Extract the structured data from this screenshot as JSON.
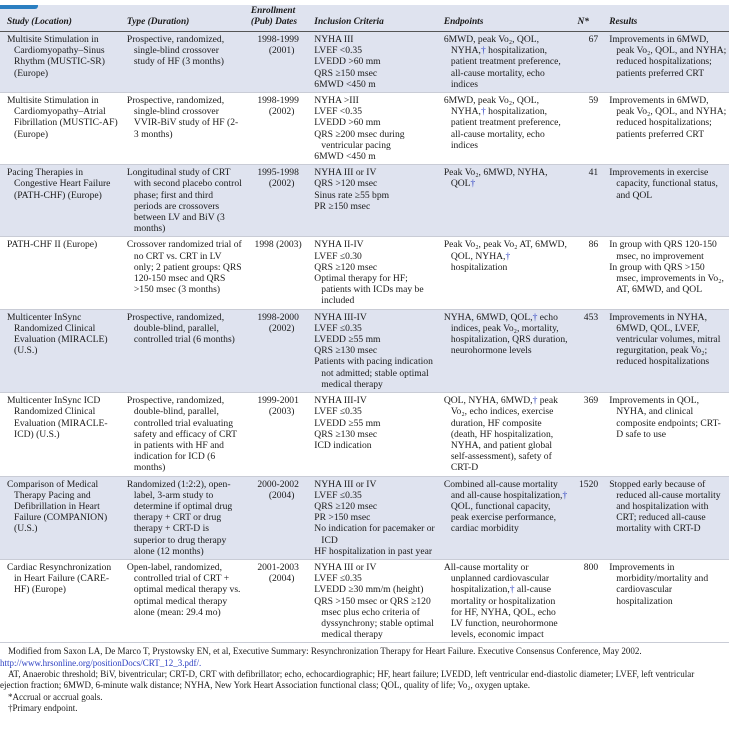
{
  "headers": [
    "Study (Location)",
    "Type (Duration)",
    "Enrollment (Pub) Dates",
    "Inclusion Criteria",
    "Endpoints",
    "N*",
    "Results"
  ],
  "rows": [
    {
      "study": "Multisite Stimulation in Cardiomyopathy–Sinus Rhythm (MUSTIC-SR) (Europe)",
      "type": "Prospective, randomized, single-blind crossover study of HF (3 months)",
      "dates": "1998-1999 (2001)",
      "criteria": [
        "NYHA III",
        "LVEF <0.35",
        "LVEDD >60 mm",
        "QRS ≥150 msec",
        "6MWD <450 m"
      ],
      "endpoints": "6MWD, peak Vo₂, QOL, NYHA,† hospitalization, patient treatment preference, all-cause mortality, echo indices",
      "n": "67",
      "results": [
        "Improvements in 6MWD, peak Vo₂, QOL, and NYHA; reduced hospitalizations; patients preferred CRT"
      ]
    },
    {
      "study": "Multisite Stimulation in Cardiomyopathy–Atrial Fibrillation (MUSTIC-AF) (Europe)",
      "type": "Prospective, randomized, single-blind crossover VVIR-BiV study of HF (2-3 months)",
      "dates": "1998-1999 (2002)",
      "criteria": [
        "NYHA >III",
        "LVEF <0.35",
        "LVEDD >60 mm",
        "QRS ≥200 msec during ventricular pacing",
        "6MWD <450 m"
      ],
      "endpoints": "6MWD, peak Vo₂, QOL, NYHA,† hospitalization, patient treatment preference, all-cause mortality, echo indices",
      "n": "59",
      "results": [
        "Improvements in 6MWD, peak Vo₂, QOL, and NYHA; reduced hospitalizations; patients preferred CRT"
      ]
    },
    {
      "study": "Pacing Therapies in Congestive Heart Failure (PATH-CHF) (Europe)",
      "type": "Longitudinal study of CRT with second placebo control phase; first and third periods are crossovers between LV and BiV (3 months)",
      "dates": "1995-1998 (2002)",
      "criteria": [
        "NYHA III or IV",
        "QRS >120 msec",
        "Sinus rate ≥55 bpm",
        "PR ≥150 msec"
      ],
      "endpoints": "Peak Vo₂, 6MWD, NYHA, QOL†",
      "n": "41",
      "results": [
        "Improvements in exercise capacity, functional status, and QOL"
      ]
    },
    {
      "study": "PATH-CHF II (Europe)",
      "type": "Crossover randomized trial of no CRT vs. CRT in LV only; 2 patient groups: QRS 120-150 msec and QRS >150 msec (3 months)",
      "dates": "1998 (2003)",
      "criteria": [
        "NYHA II-IV",
        "LVEF ≤0.30",
        "QRS ≥120 msec",
        "Optimal therapy for HF; patients with ICDs may be included"
      ],
      "endpoints": "Peak Vo₂, peak Vo₂ AT, 6MWD, QOL, NYHA,† hospitalization",
      "n": "86",
      "results": [
        "In group with QRS 120-150 msec, no improvement",
        "In group with QRS >150 msec, improvements in Vo₂, AT, 6MWD, and QOL"
      ]
    },
    {
      "study": "Multicenter InSync Randomized Clinical Evaluation (MIRACLE) (U.S.)",
      "type": "Prospective, randomized, double-blind, parallel, controlled trial (6 months)",
      "dates": "1998-2000 (2002)",
      "criteria": [
        "NYHA III-IV",
        "LVEF ≤0.35",
        "LVEDD ≥55 mm",
        "QRS ≥130 msec",
        "Patients with pacing indication not admitted; stable optimal medical therapy"
      ],
      "endpoints": "NYHA, 6MWD, QOL,† echo indices, peak Vo₂, mortality, hospitalization, QRS duration, neurohormone levels",
      "n": "453",
      "results": [
        "Improvements in NYHA, 6MWD, QOL, LVEF, ventricular volumes, mitral regurgitation, peak Vo₂; reduced hospitalizations"
      ]
    },
    {
      "study": "Multicenter InSync ICD Randomized Clinical Evaluation (MIRACLE-ICD) (U.S.)",
      "type": "Prospective, randomized, double-blind, parallel, controlled trial evaluating safety and efficacy of CRT in patients with HF and indication for ICD (6 months)",
      "dates": "1999-2001 (2003)",
      "criteria": [
        "NYHA III-IV",
        "LVEF ≤0.35",
        "LVEDD ≥55 mm",
        "QRS ≥130 msec",
        "ICD indication"
      ],
      "endpoints": "QOL, NYHA, 6MWD,† peak Vo₂, echo indices, exercise duration, HF composite (death, HF hospitalization, NYHA, and patient global self-assessment), safety of CRT-D",
      "n": "369",
      "results": [
        "Improvements in QOL, NYHA, and clinical composite endpoints; CRT-D safe to use"
      ]
    },
    {
      "study": "Comparison of Medical Therapy Pacing and Defibrillation in Heart Failure (COMPANION) (U.S.)",
      "type": "Randomized (1:2:2), open-label, 3-arm study to determine if optimal drug therapy + CRT or drug therapy + CRT-D is superior to drug therapy alone (12 months)",
      "dates": "2000-2002 (2004)",
      "criteria": [
        "NYHA III or IV",
        "LVEF ≤0.35",
        "QRS ≥120 msec",
        "PR >150 msec",
        "No indication for pacemaker or ICD",
        "HF hospitalization in past year"
      ],
      "endpoints": "Combined all-cause mortality and all-cause hospitalization,† QOL, functional capacity, peak exercise performance, cardiac morbidity",
      "n": "1520",
      "results": [
        "Stopped early because of reduced all-cause mortality and hospitalization with CRT; reduced all-cause mortality with CRT-D"
      ]
    },
    {
      "study": "Cardiac Resynchronization in Heart Failure (CARE-HF) (Europe)",
      "type": "Open-label, randomized, controlled trial of CRT + optimal medical therapy vs. optimal medical therapy alone (mean: 29.4 mo)",
      "dates": "2001-2003 (2004)",
      "criteria": [
        "NYHA III or IV",
        "LVEF ≤0.35",
        "LVEDD ≥30 mm/m (height)",
        "QRS >150 msec or QRS ≥120 msec plus echo criteria of dyssynchrony; stable optimal medical therapy"
      ],
      "endpoints": "All-cause mortality or unplanned cardiovascular hospitalization,† all-cause mortality or hospitalization for HF, NYHA, QOL, echo LV function, neurohormone levels, economic impact",
      "n": "800",
      "results": [
        "Improvements in morbidity/mortality and cardiovascular hospitalization"
      ]
    }
  ],
  "footnotes": {
    "source": "Modified from Saxon LA, De Marco T, Prystowsky EN, et al, Executive Summary: Resynchronization Therapy for Heart Failure. Executive Consensus Conference, May 2002.",
    "link": "http://www.hrsonline.org/positionDocs/CRT_12_3.pdf/.",
    "abbreviations": "AT, Anaerobic threshold; BiV, biventricular; CRT-D, CRT with defibrillator; echo, echocardiographic; HF, heart failure; LVEDD, left ventricular end-diastolic diameter; LVEF, left ventricular ejection fraction; 6MWD, 6-minute walk distance; NYHA, New York Heart Association functional class; QOL, quality of life; Vo₂, oxygen uptake.",
    "asterisk": "*Accrual or accrual goals.",
    "dagger": "†Primary endpoint."
  },
  "colors": {
    "row_shade": "#dfe3ef",
    "accent": "#2b7fc1",
    "dagger": "#2b3fc1"
  }
}
